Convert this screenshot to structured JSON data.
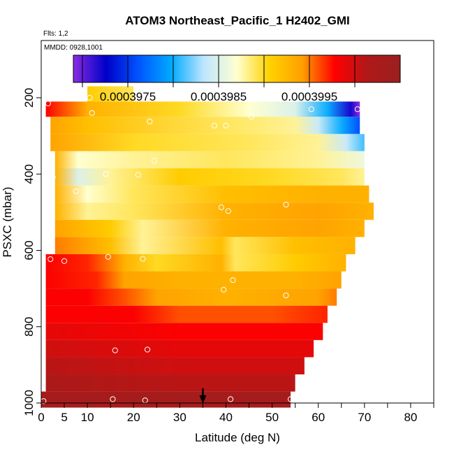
{
  "chart_data": {
    "type": "heatmap",
    "title": "ATOM3 Northeast_Pacific_1 H2402_GMI",
    "corner_labels": [
      "Flts: 1,2",
      "MMDD: 0928,1001"
    ],
    "xlabel": "Latitude (deg N)",
    "ylabel": "PSXC (mbar)",
    "xlim": [
      0,
      85
    ],
    "ylim": [
      1000,
      50
    ],
    "x_ticks": [
      0,
      5,
      10,
      20,
      30,
      40,
      50,
      60,
      70,
      80
    ],
    "y_ticks": [
      200,
      400,
      600,
      800,
      1000
    ],
    "colorbar": {
      "min": 0.0003969,
      "max": 0.0004005,
      "tick_labels": [
        "0.0003975",
        "0.0003985",
        "0.0003995"
      ],
      "tick_values": [
        0.0003975,
        0.0003985,
        0.0003995
      ],
      "colors": [
        "#8a2be2",
        "#0000c8",
        "#0055ff",
        "#00aaff",
        "#bfe6ff",
        "#ffffd0",
        "#ffd200",
        "#ffa000",
        "#ff0000",
        "#b01818",
        "#9a2020"
      ]
    },
    "marker_latitude": 35,
    "rows": [
      {
        "p_top": 170,
        "p_bot": 210,
        "stops": [
          [
            10,
            0.0003991
          ],
          [
            20,
            0.0003989
          ]
        ]
      },
      {
        "p_top": 210,
        "p_bot": 250,
        "stops": [
          [
            1,
            0.0003998
          ],
          [
            10,
            0.0003993
          ],
          [
            30,
            0.000399
          ],
          [
            45,
            0.0003987
          ],
          [
            55,
            0.0003985
          ],
          [
            62,
            0.000398
          ],
          [
            67,
            0.0003972
          ],
          [
            69,
            0.0003969
          ]
        ]
      },
      {
        "p_top": 250,
        "p_bot": 295,
        "stops": [
          [
            2,
            0.0003994
          ],
          [
            10,
            0.0003992
          ],
          [
            40,
            0.0003989
          ],
          [
            55,
            0.0003988
          ],
          [
            60,
            0.0003984
          ],
          [
            65,
            0.000398
          ],
          [
            69,
            0.0003976
          ]
        ]
      },
      {
        "p_top": 295,
        "p_bot": 340,
        "stops": [
          [
            2,
            0.0003994
          ],
          [
            20,
            0.000399
          ],
          [
            45,
            0.0003989
          ],
          [
            60,
            0.0003988
          ],
          [
            66,
            0.0003984
          ],
          [
            70,
            0.0003981
          ]
        ]
      },
      {
        "p_top": 340,
        "p_bot": 385,
        "stops": [
          [
            3,
            0.0003993
          ],
          [
            8,
            0.0003987
          ],
          [
            20,
            0.0003988
          ],
          [
            40,
            0.0003989
          ],
          [
            60,
            0.0003988
          ],
          [
            70,
            0.0003986
          ]
        ]
      },
      {
        "p_top": 385,
        "p_bot": 430,
        "stops": [
          [
            3,
            0.0003993
          ],
          [
            8,
            0.0003985
          ],
          [
            15,
            0.0003988
          ],
          [
            30,
            0.0003991
          ],
          [
            50,
            0.000399
          ],
          [
            65,
            0.0003989
          ],
          [
            70,
            0.0003988
          ]
        ]
      },
      {
        "p_top": 430,
        "p_bot": 475,
        "stops": [
          [
            3,
            0.0003993
          ],
          [
            10,
            0.0003987
          ],
          [
            20,
            0.0003989
          ],
          [
            40,
            0.0003992
          ],
          [
            60,
            0.0003993
          ],
          [
            71,
            0.0003993
          ]
        ]
      },
      {
        "p_top": 475,
        "p_bot": 520,
        "stops": [
          [
            3,
            0.0003993
          ],
          [
            10,
            0.0003988
          ],
          [
            20,
            0.0003989
          ],
          [
            40,
            0.0003993
          ],
          [
            60,
            0.0003994
          ],
          [
            72,
            0.0003993
          ]
        ]
      },
      {
        "p_top": 520,
        "p_bot": 565,
        "stops": [
          [
            3,
            0.0003994
          ],
          [
            15,
            0.0003991
          ],
          [
            22,
            0.0003988
          ],
          [
            40,
            0.0003993
          ],
          [
            60,
            0.0003994
          ],
          [
            70,
            0.0003993
          ]
        ]
      },
      {
        "p_top": 565,
        "p_bot": 610,
        "stops": [
          [
            3,
            0.0003995
          ],
          [
            15,
            0.0003992
          ],
          [
            22,
            0.0003988
          ],
          [
            39,
            0.0003992
          ],
          [
            42,
            0.0003989
          ],
          [
            55,
            0.0003992
          ],
          [
            68,
            0.0003993
          ]
        ]
      },
      {
        "p_top": 610,
        "p_bot": 655,
        "stops": [
          [
            1,
            0.0003998
          ],
          [
            10,
            0.0003997
          ],
          [
            18,
            0.0003993
          ],
          [
            25,
            0.000399
          ],
          [
            39,
            0.0003993
          ],
          [
            42,
            0.0003989
          ],
          [
            55,
            0.0003991
          ],
          [
            66,
            0.0003993
          ]
        ]
      },
      {
        "p_top": 655,
        "p_bot": 700,
        "stops": [
          [
            1,
            0.0003998
          ],
          [
            12,
            0.0003997
          ],
          [
            18,
            0.0003994
          ],
          [
            30,
            0.0003993
          ],
          [
            40,
            0.0003993
          ],
          [
            55,
            0.0003993
          ],
          [
            65,
            0.0003994
          ]
        ]
      },
      {
        "p_top": 700,
        "p_bot": 745,
        "stops": [
          [
            1,
            0.0003998
          ],
          [
            10,
            0.0003998
          ],
          [
            18,
            0.0003996
          ],
          [
            25,
            0.0003994
          ],
          [
            40,
            0.0003993
          ],
          [
            60,
            0.0003994
          ],
          [
            64,
            0.0003995
          ]
        ]
      },
      {
        "p_top": 745,
        "p_bot": 790,
        "stops": [
          [
            1,
            0.0003998
          ],
          [
            20,
            0.0003998
          ],
          [
            30,
            0.0003996
          ],
          [
            50,
            0.0003996
          ],
          [
            62,
            0.0003997
          ]
        ]
      },
      {
        "p_top": 790,
        "p_bot": 835,
        "stops": [
          [
            1,
            0.0003999
          ],
          [
            30,
            0.0003998
          ],
          [
            61,
            0.0003998
          ]
        ]
      },
      {
        "p_top": 835,
        "p_bot": 880,
        "stops": [
          [
            1,
            0.0004
          ],
          [
            30,
            0.0003999
          ],
          [
            59,
            0.0003999
          ]
        ]
      },
      {
        "p_top": 880,
        "p_bot": 925,
        "stops": [
          [
            1,
            0.0004001
          ],
          [
            30,
            0.0004
          ],
          [
            57,
            0.0004
          ]
        ]
      },
      {
        "p_top": 925,
        "p_bot": 970,
        "stops": [
          [
            1,
            0.0004002
          ],
          [
            30,
            0.0004001
          ],
          [
            55,
            0.0004001
          ]
        ]
      },
      {
        "p_top": 970,
        "p_bot": 1012,
        "stops": [
          [
            0,
            0.0004003
          ],
          [
            30,
            0.0004003
          ],
          [
            54,
            0.0004003
          ]
        ]
      }
    ],
    "points": [
      [
        1.5,
        215
      ],
      [
        10.5,
        200
      ],
      [
        11,
        240
      ],
      [
        23.5,
        262
      ],
      [
        37.5,
        273
      ],
      [
        40,
        273
      ],
      [
        45.5,
        250
      ],
      [
        58.5,
        230
      ],
      [
        68.5,
        230
      ],
      [
        2.5,
        408
      ],
      [
        14,
        400
      ],
      [
        21,
        402
      ],
      [
        24.5,
        365
      ],
      [
        7.5,
        445
      ],
      [
        39,
        487
      ],
      [
        40.5,
        497
      ],
      [
        53,
        480
      ],
      [
        2,
        623
      ],
      [
        5,
        628
      ],
      [
        14.5,
        617
      ],
      [
        22,
        622
      ],
      [
        41.5,
        678
      ],
      [
        39.5,
        703
      ],
      [
        53,
        718
      ],
      [
        16,
        862
      ],
      [
        23,
        860
      ],
      [
        0.5,
        995
      ],
      [
        15.5,
        990
      ],
      [
        22.5,
        993
      ],
      [
        41,
        990
      ],
      [
        54,
        990
      ]
    ]
  }
}
